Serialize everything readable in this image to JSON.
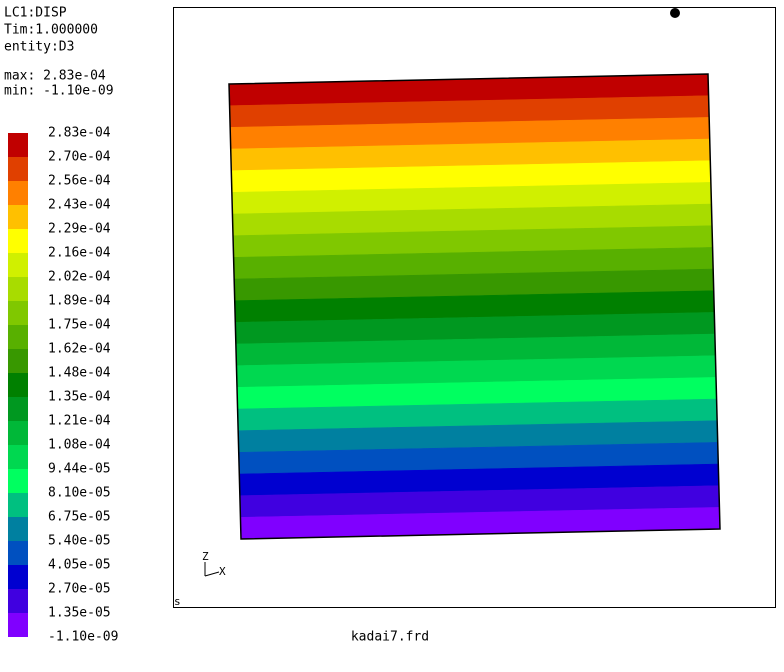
{
  "header": {
    "case": "LC1:DISP",
    "time": "Tim:1.000000",
    "entity": "entity:D3",
    "max": "max: 2.83e-04",
    "min": "min: -1.10e-09"
  },
  "legend": {
    "labels": [
      "2.83e-04",
      "2.70e-04",
      "2.56e-04",
      "2.43e-04",
      "2.29e-04",
      "2.16e-04",
      "2.02e-04",
      "1.89e-04",
      "1.75e-04",
      "1.62e-04",
      "1.48e-04",
      "1.35e-04",
      "1.21e-04",
      "1.08e-04",
      "9.44e-05",
      "8.10e-05",
      "6.75e-05",
      "5.40e-05",
      "4.05e-05",
      "2.70e-05",
      "1.35e-05",
      "-1.10e-09"
    ],
    "colors": [
      "#c00000",
      "#e04000",
      "#ff8000",
      "#ffc000",
      "#ffff00",
      "#d0f000",
      "#a8dc00",
      "#80c800",
      "#58b000",
      "#389800",
      "#008000",
      "#009820",
      "#00b838",
      "#00d850",
      "#00ff60",
      "#00c080",
      "#0080a0",
      "#0050c0",
      "#0000d0",
      "#4000e0",
      "#8000ff"
    ]
  },
  "triad": {
    "z": "Z",
    "x": "X"
  },
  "corner_mark": "s",
  "filename": "kadai7.frd"
}
